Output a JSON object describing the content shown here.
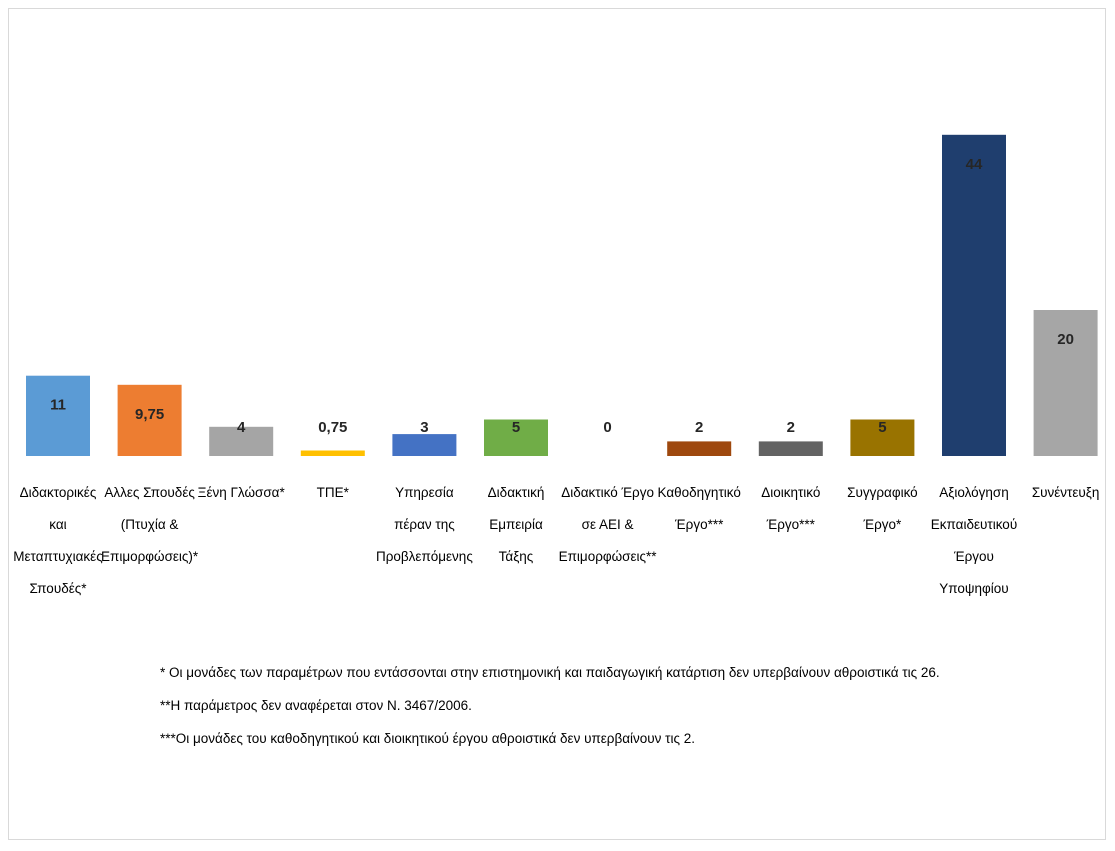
{
  "chart_data": {
    "type": "bar",
    "title": "",
    "xlabel": "",
    "ylabel": "",
    "ylim": [
      0,
      50
    ],
    "grid": false,
    "categories": [
      [
        "Διδακτορικές",
        "και",
        "Μεταπτυχιακές",
        "Σπουδές*"
      ],
      [
        "Αλλες Σπουδές",
        "(Πτυχία &",
        "Επιμορφώσεις)*"
      ],
      [
        "Ξένη Γλώσσα*"
      ],
      [
        "ΤΠΕ*"
      ],
      [
        "Υπηρεσία",
        "πέραν της",
        "Προβλεπόμενης"
      ],
      [
        "Διδακτική",
        "Εμπειρία",
        "Τάξης"
      ],
      [
        "Διδακτικό Έργο",
        "σε ΑΕΙ &",
        "Επιμορφώσεις**"
      ],
      [
        "Καθοδηγητικό",
        "Έργο***"
      ],
      [
        "Διοικητικό",
        "Έργο***"
      ],
      [
        "Συγγραφικό",
        "Έργο*"
      ],
      [
        "Αξιολόγηση",
        "Εκπαιδευτικού",
        "Έργου",
        "Υποψηφίου"
      ],
      [
        "Συνέντευξη"
      ]
    ],
    "values": [
      11,
      9.75,
      4,
      0.75,
      3,
      5,
      0,
      2,
      2,
      5,
      44,
      20
    ],
    "value_labels": [
      "11",
      "9,75",
      "4",
      "0,75",
      "3",
      "5",
      "0",
      "2",
      "2",
      "5",
      "44",
      "20"
    ],
    "colors": [
      "#5b9bd5",
      "#ed7d31",
      "#a5a5a5",
      "#ffc000",
      "#4472c4",
      "#70ad47",
      "#264478",
      "#9e480e",
      "#636363",
      "#997300",
      "#1f3e6e",
      "#a6a6a6"
    ]
  },
  "notes": [
    "* Οι μονάδες  των παραμέτρων  που εντάσσονται στην επιστημονική και παιδαγωγική κατάρτιση δεν υπερβαίνουν αθροιστικά τις  26.",
    "**Η παράμετρος δεν αναφέρεται στον Ν. 3467/2006.",
    "***Οι μονάδες του καθοδηγητικού  και διοικητικού έργου αθροιστικά δεν υπερβαίνουν τις 2."
  ]
}
